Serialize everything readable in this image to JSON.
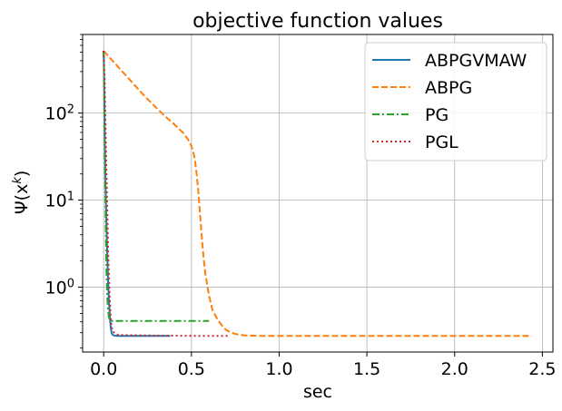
{
  "chart_data": {
    "type": "line",
    "title": "objective function values",
    "xlabel": "sec",
    "ylabel": "Ψ(x^k)",
    "ylabel_base": "Ψ(x",
    "ylabel_sup": "k",
    "ylabel_close": ")",
    "yscale": "log",
    "xlim": [
      -0.12,
      2.56
    ],
    "ylim": [
      0.18,
      800
    ],
    "grid": true,
    "legend_position": "top-right",
    "x_ticks": [
      {
        "value": 0.0,
        "label": "0.0"
      },
      {
        "value": 0.5,
        "label": "0.5"
      },
      {
        "value": 1.0,
        "label": "1.0"
      },
      {
        "value": 1.5,
        "label": "1.5"
      },
      {
        "value": 2.0,
        "label": "2.0"
      },
      {
        "value": 2.5,
        "label": "2.5"
      }
    ],
    "y_ticks": [
      {
        "value": 1,
        "base": "10",
        "exp": "0"
      },
      {
        "value": 10,
        "base": "10",
        "exp": "1"
      },
      {
        "value": 100,
        "base": "10",
        "exp": "2"
      }
    ],
    "series": [
      {
        "name": "ABPGVMAW",
        "color": "#1f77b4",
        "dash": "solid",
        "x": [
          0.0,
          0.003,
          0.006,
          0.01,
          0.015,
          0.02,
          0.025,
          0.03,
          0.035,
          0.04,
          0.045,
          0.05,
          0.06,
          0.08,
          0.12,
          0.2,
          0.3,
          0.38
        ],
        "y": [
          520,
          200,
          60,
          18,
          6,
          2.5,
          1.2,
          0.7,
          0.45,
          0.35,
          0.3,
          0.285,
          0.278,
          0.276,
          0.275,
          0.275,
          0.275,
          0.275
        ]
      },
      {
        "name": "ABPG",
        "color": "#ff7f0e",
        "dash": "dashed",
        "x": [
          0.0,
          0.05,
          0.1,
          0.15,
          0.2,
          0.25,
          0.3,
          0.35,
          0.4,
          0.45,
          0.48,
          0.5,
          0.51,
          0.52,
          0.53,
          0.54,
          0.55,
          0.56,
          0.57,
          0.58,
          0.6,
          0.62,
          0.65,
          0.68,
          0.7,
          0.73,
          0.75,
          0.8,
          0.9,
          1.0,
          1.5,
          2.0,
          2.44
        ],
        "y": [
          520,
          400,
          310,
          240,
          185,
          145,
          115,
          92,
          75,
          60,
          50,
          42,
          36,
          29,
          20,
          12,
          6.5,
          3.6,
          2.1,
          1.4,
          0.8,
          0.55,
          0.42,
          0.35,
          0.32,
          0.3,
          0.29,
          0.28,
          0.275,
          0.275,
          0.275,
          0.275,
          0.275
        ]
      },
      {
        "name": "PG",
        "color": "#2ca02c",
        "dash": "dashdot",
        "x": [
          0.0,
          0.003,
          0.006,
          0.01,
          0.013,
          0.016,
          0.02,
          0.025,
          0.03,
          0.035,
          0.04,
          0.05,
          0.1,
          0.2,
          0.3,
          0.4,
          0.5,
          0.6
        ],
        "y": [
          520,
          150,
          40,
          10,
          3.5,
          1.5,
          0.8,
          0.55,
          0.45,
          0.42,
          0.41,
          0.41,
          0.41,
          0.41,
          0.41,
          0.41,
          0.41,
          0.41
        ]
      },
      {
        "name": "PGL",
        "color": "#d62728",
        "dash": "dotted",
        "x": [
          0.0,
          0.005,
          0.01,
          0.015,
          0.02,
          0.025,
          0.03,
          0.035,
          0.04,
          0.045,
          0.05,
          0.06,
          0.07,
          0.08,
          0.1,
          0.2,
          0.3,
          0.4,
          0.5,
          0.6,
          0.72
        ],
        "y": [
          520,
          250,
          80,
          25,
          8,
          3,
          1.3,
          0.7,
          0.45,
          0.36,
          0.32,
          0.3,
          0.29,
          0.285,
          0.282,
          0.28,
          0.278,
          0.277,
          0.276,
          0.276,
          0.276
        ]
      }
    ]
  }
}
